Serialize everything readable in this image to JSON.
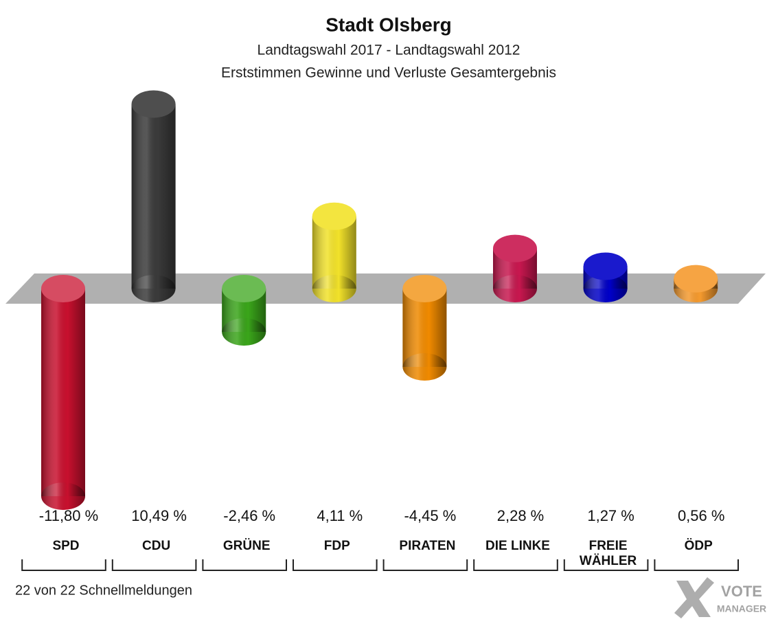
{
  "chart_data": {
    "type": "bar",
    "title": "Stadt Olsberg",
    "subtitle": [
      "Landtagswahl 2017 - Landtagswahl 2012",
      "Erststimmen Gewinne und Verluste Gesamtergebnis"
    ],
    "categories": [
      "SPD",
      "CDU",
      "GRÜNE",
      "FDP",
      "PIRATEN",
      "DIE LINKE",
      "FREIE WÄHLER",
      "ÖDP"
    ],
    "values": [
      -11.8,
      10.49,
      -2.46,
      4.11,
      -4.45,
      2.28,
      1.27,
      0.56
    ],
    "value_labels": [
      "-11,80 %",
      "10,49 %",
      "-2,46 %",
      "4,11 %",
      "-4,45 %",
      "2,28 %",
      "1,27 %",
      "0,56 %"
    ],
    "colors": [
      "#c8102e",
      "#3a3a3a",
      "#3aa51a",
      "#f2e22a",
      "#f08a00",
      "#c8174f",
      "#0000c8",
      "#f59a2e"
    ],
    "footnote": "22 von 22 Schnellmeldungen",
    "logo": [
      "VOTE",
      "MANAGER"
    ]
  }
}
